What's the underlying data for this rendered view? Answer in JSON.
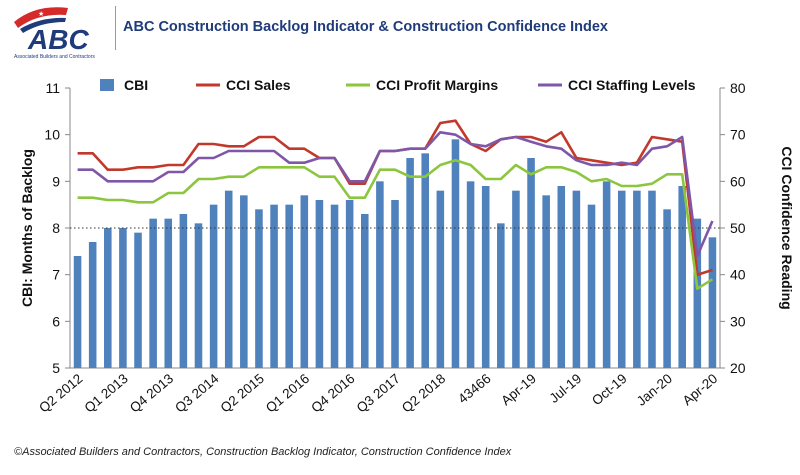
{
  "colors": {
    "bar": "#4f81bd",
    "sales": "#c0392b",
    "profit": "#8cc63f",
    "staffing": "#7e57a8",
    "title": "#1f3b7a",
    "logo_blue": "#1f3b7a",
    "logo_red": "#d42a2a"
  },
  "logo": {
    "text": "ABC",
    "subtitle": "Associated Builders and Contractors"
  },
  "header": {
    "title": "ABC Construction Backlog Indicator & Construction Confidence Index"
  },
  "footer": {
    "text": "©Associated Builders and Contractors, Construction Backlog Indicator, Construction Confidence Index"
  },
  "chart_data": {
    "type": "bar",
    "title": "ABC Construction Backlog Indicator & Construction Confidence Index",
    "ylabel": "CBI: Months of Backlog",
    "y2label": "CCI Confidence Reading",
    "ylim": [
      5,
      11
    ],
    "y2lim": [
      20,
      80
    ],
    "yticks": [
      5,
      6,
      7,
      8,
      9,
      10,
      11
    ],
    "y2ticks": [
      20,
      30,
      40,
      50,
      60,
      70,
      80
    ],
    "reference_line": {
      "axis": "y2",
      "value": 50,
      "style": "dotted"
    },
    "legend_position": "top",
    "x_tick_labels": [
      "Q2 2012",
      "Q1 2013",
      "Q4 2013",
      "Q3 2014",
      "Q2 2015",
      "Q1 2016",
      "Q4 2016",
      "Q3 2017",
      "Q2 2018",
      "43466",
      "Apr-19",
      "Jul-19",
      "Oct-19",
      "Jan-20",
      "Apr-20"
    ],
    "x_tick_positions": [
      0,
      3,
      6,
      9,
      12,
      15,
      18,
      21,
      24,
      27,
      30,
      33,
      36,
      39,
      42
    ],
    "categories": [
      "Q2 2012",
      "Q3 2012",
      "Q4 2012",
      "Q1 2013",
      "Q2 2013",
      "Q3 2013",
      "Q4 2013",
      "Q1 2014",
      "Q2 2014",
      "Q3 2014",
      "Q4 2014",
      "Q1 2015",
      "Q2 2015",
      "Q3 2015",
      "Q4 2015",
      "Q1 2016",
      "Q2 2016",
      "Q3 2016",
      "Q4 2016",
      "Q1 2017",
      "Q2 2017",
      "Q3 2017",
      "Q4 2017",
      "Q1 2018",
      "Q2 2018",
      "Q3 2018",
      "Q4 2018",
      "43466",
      "Feb-19",
      "Mar-19",
      "Apr-19",
      "May-19",
      "Jun-19",
      "Jul-19",
      "Aug-19",
      "Sep-19",
      "Oct-19",
      "Nov-19",
      "Dec-19",
      "Jan-20",
      "Feb-20",
      "Mar-20",
      "Apr-20"
    ],
    "series": [
      {
        "name": "CBI",
        "kind": "bar",
        "axis": "y",
        "values": [
          7.4,
          7.7,
          8.0,
          8.0,
          7.9,
          8.2,
          8.2,
          8.3,
          8.1,
          8.5,
          8.8,
          8.7,
          8.4,
          8.5,
          8.5,
          8.7,
          8.6,
          8.5,
          8.6,
          8.3,
          9.0,
          8.6,
          9.5,
          9.6,
          8.8,
          9.9,
          9.0,
          8.9,
          8.1,
          8.8,
          9.5,
          8.7,
          8.9,
          8.8,
          8.5,
          9.0,
          8.8,
          8.8,
          8.8,
          8.4,
          8.9,
          8.2,
          7.8
        ]
      },
      {
        "name": "CCI Sales",
        "kind": "line",
        "axis": "y2",
        "values": [
          66,
          66,
          62.5,
          62.5,
          63,
          63,
          63.5,
          63.5,
          68,
          68,
          67.5,
          67.5,
          69.5,
          69.5,
          67,
          67,
          65,
          65,
          59.5,
          59.5,
          66.5,
          66.5,
          67,
          67,
          72.5,
          73,
          68,
          66.5,
          69,
          69.5,
          69.5,
          68.5,
          70.5,
          65,
          64.5,
          64,
          63.5,
          64,
          69.5,
          69,
          68.5,
          40,
          41
        ]
      },
      {
        "name": "CCI Profit Margins",
        "kind": "line",
        "axis": "y2",
        "values": [
          56.5,
          56.5,
          56,
          56,
          55.5,
          55.5,
          57.5,
          57.5,
          60.5,
          60.5,
          61,
          61,
          63,
          63,
          63,
          63,
          61,
          61,
          56.5,
          56.5,
          62.5,
          62.5,
          61,
          61,
          63.5,
          64.5,
          63.5,
          60.5,
          60.5,
          63.5,
          61.5,
          63,
          63,
          62,
          60,
          60.5,
          59,
          59,
          59.5,
          61.5,
          61.5,
          37,
          39
        ]
      },
      {
        "name": "CCI Staffing Levels",
        "kind": "line",
        "axis": "y2",
        "values": [
          62.5,
          62.5,
          60,
          60,
          60,
          60,
          62,
          62,
          65,
          65,
          66.5,
          66.5,
          66.5,
          66.5,
          64,
          64,
          65,
          65,
          60,
          60,
          66.5,
          66.5,
          67,
          67,
          70.5,
          70,
          68,
          67.5,
          69,
          69.5,
          68.5,
          67.5,
          67,
          64.5,
          63.5,
          63.5,
          64,
          63.5,
          67,
          67.5,
          69.5,
          44,
          51.5
        ]
      }
    ]
  }
}
